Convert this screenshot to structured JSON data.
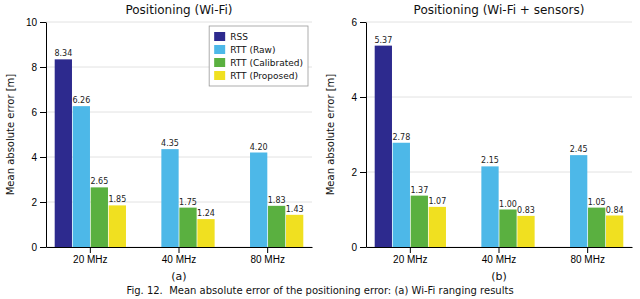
{
  "chart_data": [
    {
      "type": "bar",
      "title": "Positioning (Wi-Fi)",
      "xlabel": "(a)",
      "ylabel": "Mean absolute error [m]",
      "categories": [
        "20 MHz",
        "40 MHz",
        "80 MHz"
      ],
      "series": [
        {
          "name": "RSS",
          "color": "#2d2a8e",
          "values": [
            8.34,
            null,
            null
          ],
          "value_labels": [
            "8.34",
            null,
            null
          ]
        },
        {
          "name": "RTT (Raw)",
          "color": "#4db8e8",
          "values": [
            6.26,
            4.35,
            4.2
          ],
          "value_labels": [
            "6.26",
            "4.35",
            "4.20"
          ]
        },
        {
          "name": "RTT (Calibrated)",
          "color": "#5ab040",
          "values": [
            2.65,
            1.75,
            1.83
          ],
          "value_labels": [
            "2.65",
            "1.75",
            "1.83"
          ]
        },
        {
          "name": "RTT (Proposed)",
          "color": "#f0e020",
          "values": [
            1.85,
            1.24,
            1.43
          ],
          "value_labels": [
            "1.85",
            "1.24",
            "1.43"
          ]
        }
      ],
      "ylim": [
        0,
        10
      ],
      "yticks": [
        0,
        2,
        4,
        6,
        8,
        10
      ],
      "grid": true,
      "legend": "upper right",
      "data_labels": true
    },
    {
      "type": "bar",
      "title": "Positioning (Wi-Fi + sensors)",
      "xlabel": "(b)",
      "ylabel": "Mean absolute error [m]",
      "categories": [
        "20 MHz",
        "40 MHz",
        "80 MHz"
      ],
      "series": [
        {
          "name": "RSS",
          "color": "#2d2a8e",
          "values": [
            5.37,
            null,
            null
          ],
          "value_labels": [
            "5.37",
            null,
            null
          ]
        },
        {
          "name": "RTT (Raw)",
          "color": "#4db8e8",
          "values": [
            2.78,
            2.15,
            2.45
          ],
          "value_labels": [
            "2.78",
            "2.15",
            "2.45"
          ]
        },
        {
          "name": "RTT (Calibrated)",
          "color": "#5ab040",
          "values": [
            1.37,
            1.0,
            1.05
          ],
          "value_labels": [
            "1.37",
            "1.00",
            "1.05"
          ]
        },
        {
          "name": "RTT (Proposed)",
          "color": "#f0e020",
          "values": [
            1.07,
            0.83,
            0.84
          ],
          "value_labels": [
            "1.07",
            "0.83",
            "0.84"
          ]
        }
      ],
      "ylim": [
        0,
        6
      ],
      "yticks": [
        0,
        2,
        4,
        6
      ],
      "grid": true,
      "data_labels": true
    }
  ],
  "caption": "Fig. 12.  Mean absolute error of the positioning error: (a) Wi-Fi ranging results"
}
